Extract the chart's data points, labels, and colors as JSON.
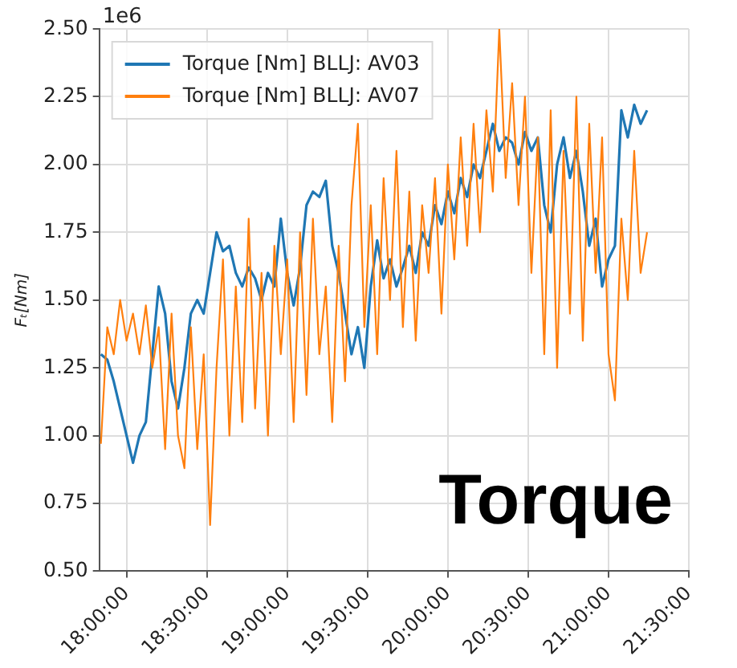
{
  "chart_data": {
    "type": "line",
    "ylabel": "Fₜ[Nm]",
    "annotations": [
      "1e6",
      "Torque"
    ],
    "x": [
      17.84,
      17.88,
      17.92,
      17.96,
      18.0,
      18.04,
      18.08,
      18.12,
      18.16,
      18.2,
      18.24,
      18.28,
      18.32,
      18.36,
      18.4,
      18.44,
      18.48,
      18.52,
      18.56,
      18.6,
      18.64,
      18.68,
      18.72,
      18.76,
      18.8,
      18.84,
      18.88,
      18.92,
      18.96,
      19.0,
      19.04,
      19.08,
      19.12,
      19.16,
      19.2,
      19.24,
      19.28,
      19.32,
      19.36,
      19.4,
      19.44,
      19.48,
      19.52,
      19.56,
      19.6,
      19.64,
      19.68,
      19.72,
      19.76,
      19.8,
      19.84,
      19.88,
      19.92,
      19.96,
      20.0,
      20.04,
      20.08,
      20.12,
      20.16,
      20.2,
      20.24,
      20.28,
      20.32,
      20.36,
      20.4,
      20.44,
      20.48,
      20.52,
      20.56,
      20.6,
      20.64,
      20.68,
      20.72,
      20.76,
      20.8,
      20.84,
      20.88,
      20.92,
      20.96,
      21.0,
      21.04,
      21.08,
      21.12,
      21.16,
      21.2,
      21.24
    ],
    "series": [
      {
        "name": "Torque [Nm] BLLJ: AV03",
        "color": "#1f77b4",
        "values": [
          1.3,
          1.28,
          1.2,
          1.1,
          1.0,
          0.9,
          1.0,
          1.05,
          1.3,
          1.55,
          1.45,
          1.2,
          1.1,
          1.25,
          1.45,
          1.5,
          1.45,
          1.6,
          1.75,
          1.68,
          1.7,
          1.6,
          1.55,
          1.62,
          1.58,
          1.5,
          1.6,
          1.55,
          1.8,
          1.6,
          1.48,
          1.62,
          1.85,
          1.9,
          1.88,
          1.94,
          1.7,
          1.6,
          1.45,
          1.3,
          1.4,
          1.25,
          1.55,
          1.72,
          1.58,
          1.65,
          1.55,
          1.62,
          1.7,
          1.6,
          1.75,
          1.7,
          1.85,
          1.78,
          1.9,
          1.82,
          1.95,
          1.88,
          2.0,
          1.95,
          2.05,
          2.15,
          2.05,
          2.1,
          2.08,
          2.0,
          2.12,
          2.05,
          2.1,
          1.85,
          1.75,
          2.0,
          2.1,
          1.95,
          2.05,
          1.9,
          1.7,
          1.8,
          1.55,
          1.65,
          1.7,
          2.2,
          2.1,
          2.22,
          2.15,
          2.2
        ]
      },
      {
        "name": "Torque [Nm] BLLJ: AV07",
        "color": "#ff7f0e",
        "values": [
          0.97,
          1.4,
          1.3,
          1.5,
          1.35,
          1.45,
          1.3,
          1.48,
          1.25,
          1.4,
          0.95,
          1.45,
          1.0,
          0.88,
          1.4,
          0.95,
          1.3,
          0.67,
          1.25,
          1.65,
          1.0,
          1.55,
          1.05,
          1.8,
          1.1,
          1.6,
          1.0,
          1.7,
          1.3,
          1.65,
          1.05,
          1.75,
          1.15,
          1.8,
          1.3,
          1.55,
          1.05,
          1.7,
          1.2,
          1.85,
          2.15,
          1.4,
          1.85,
          1.3,
          1.95,
          1.5,
          2.05,
          1.4,
          1.9,
          1.35,
          1.85,
          1.6,
          1.95,
          1.45,
          2.0,
          1.65,
          2.1,
          1.7,
          2.15,
          1.75,
          2.2,
          1.9,
          2.5,
          1.95,
          2.3,
          1.85,
          2.25,
          1.6,
          2.1,
          1.3,
          2.2,
          1.25,
          2.05,
          1.45,
          2.25,
          1.35,
          2.15,
          1.6,
          2.1,
          1.3,
          1.13,
          1.8,
          1.5,
          2.05,
          1.6,
          1.75
        ]
      }
    ],
    "xlim": [
      17.83,
      21.5
    ],
    "xticks": [
      {
        "value": 18,
        "label": "18:00:00"
      },
      {
        "value": 18.5,
        "label": "18:30:00"
      },
      {
        "value": 19,
        "label": "19:00:00"
      },
      {
        "value": 19.5,
        "label": "19:30:00"
      },
      {
        "value": 20,
        "label": "20:00:00"
      },
      {
        "value": 20.5,
        "label": "20:30:00"
      },
      {
        "value": 21,
        "label": "21:00:00"
      },
      {
        "value": 21.5,
        "label": "21:30:00"
      }
    ],
    "ylim": [
      0.5,
      2.5
    ],
    "yticks": [
      {
        "value": 0.5,
        "label": "0.50"
      },
      0.75,
      {
        "value": 1,
        "label": "1.00"
      },
      1.25,
      {
        "value": 1.5,
        "label": "1.50"
      },
      1.75,
      {
        "value": 2,
        "label": "2.00"
      },
      2.25,
      {
        "value": 2.5,
        "label": "2.50"
      }
    ],
    "grid": true,
    "legend": "top left"
  }
}
